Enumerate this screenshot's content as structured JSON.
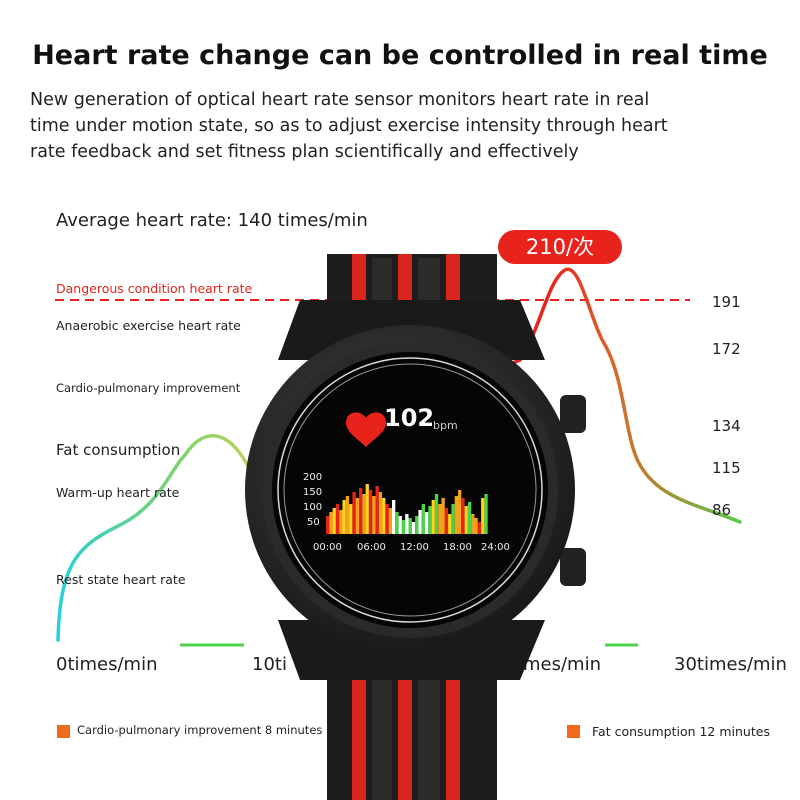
{
  "headline": "Heart rate change can be controlled in real time",
  "description": [
    "New generation of optical heart rate sensor monitors heart rate in real",
    "time under motion state, so as to adjust exercise intensity through heart",
    "rate feedback and set fitness plan scientifically and effectively"
  ],
  "average_rate": "Average heart rate: 140 times/min",
  "peak_badge": "210/次",
  "zones": {
    "dangerous": "Dangerous condition heart rate",
    "anaerobic": "Anaerobic exercise heart rate",
    "cardio": "Cardio-pulmonary improvement",
    "fat": "Fat consumption",
    "warmup": "Warm-up heart rate",
    "rest": "Rest state heart rate"
  },
  "thresholds": [
    "191",
    "172",
    "134",
    "115",
    "86"
  ],
  "x_axis": {
    "start": "0times/min",
    "ten": "10ti",
    "twenty": "imes/min",
    "thirty": "30times/min"
  },
  "watch": {
    "bpm_value": "102",
    "bpm_unit": "bpm",
    "chart_y_ticks": [
      "200",
      "150",
      "100",
      "50"
    ],
    "chart_x_ticks": [
      "00:00",
      "06:00",
      "12:00",
      "18:00",
      "24:00"
    ]
  },
  "legend": [
    {
      "label": "Cardio-pulmonary improvement 8 minutes",
      "color": "#f26a1b"
    },
    {
      "label": "Fat consumption 12 minutes",
      "color": "#f26a1b"
    }
  ],
  "colors": {
    "danger": "#e8231b",
    "strap_red": "#d8261f",
    "strap_black": "#1d1d1d"
  }
}
